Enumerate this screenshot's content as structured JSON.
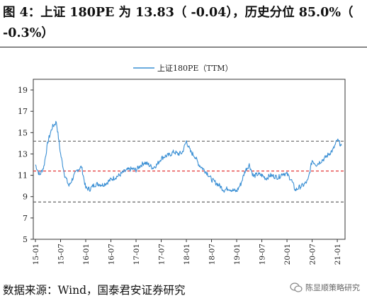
{
  "header": {
    "title": "图 4：上证 180PE 为 13.83（ -0.04），历史分位 85.0%（ -0.3%）"
  },
  "footer": {
    "source": "数据来源：Wind，国泰君安证券研究"
  },
  "watermark": {
    "text": "陈显顺策略研究",
    "icon": "wechat-icon"
  },
  "colors": {
    "series": "#3a8fd4",
    "upper_ref": "#555555",
    "median_ref": "#e02020",
    "lower_ref": "#555555"
  },
  "chart_data": {
    "type": "line",
    "title": "",
    "legend": {
      "position": "top-center",
      "entries": [
        "上证180PE（TTM）"
      ]
    },
    "ylim": [
      5,
      20
    ],
    "yticks": [
      5,
      7,
      9,
      11,
      13,
      15,
      17,
      19
    ],
    "xticks": [
      "15-01",
      "15-07",
      "16-01",
      "16-07",
      "17-01",
      "17-07",
      "18-01",
      "18-07",
      "19-01",
      "19-07",
      "20-01",
      "20-07",
      "21-01"
    ],
    "grid": false,
    "reference_lines": [
      {
        "value": 14.2,
        "style": "dashed",
        "color": "#555555"
      },
      {
        "value": 11.4,
        "style": "dashed",
        "color": "#e02020"
      },
      {
        "value": 8.5,
        "style": "dashed",
        "color": "#555555"
      }
    ],
    "series": [
      {
        "name": "上证180PE（TTM）",
        "x": [
          "2015-01",
          "2015-02",
          "2015-03",
          "2015-04",
          "2015-05",
          "2015-06",
          "2015-07",
          "2015-08",
          "2015-09",
          "2015-10",
          "2015-11",
          "2015-12",
          "2016-01",
          "2016-02",
          "2016-03",
          "2016-04",
          "2016-05",
          "2016-06",
          "2016-07",
          "2016-08",
          "2016-09",
          "2016-10",
          "2016-11",
          "2016-12",
          "2017-01",
          "2017-02",
          "2017-03",
          "2017-04",
          "2017-05",
          "2017-06",
          "2017-07",
          "2017-08",
          "2017-09",
          "2017-10",
          "2017-11",
          "2017-12",
          "2018-01",
          "2018-02",
          "2018-03",
          "2018-04",
          "2018-05",
          "2018-06",
          "2018-07",
          "2018-08",
          "2018-09",
          "2018-10",
          "2018-11",
          "2018-12",
          "2019-01",
          "2019-02",
          "2019-03",
          "2019-04",
          "2019-05",
          "2019-06",
          "2019-07",
          "2019-08",
          "2019-09",
          "2019-10",
          "2019-11",
          "2019-12",
          "2020-01",
          "2020-02",
          "2020-03",
          "2020-04",
          "2020-05",
          "2020-06",
          "2020-07",
          "2020-08",
          "2020-09",
          "2020-10",
          "2020-11",
          "2020-12",
          "2021-01",
          "2021-02"
        ],
        "values": [
          12.0,
          11.0,
          11.8,
          14.2,
          15.5,
          16.0,
          13.0,
          11.0,
          10.0,
          10.8,
          11.5,
          11.8,
          9.8,
          9.7,
          10.1,
          10.2,
          10.1,
          10.3,
          10.6,
          10.8,
          11.0,
          11.3,
          11.5,
          11.6,
          11.5,
          11.9,
          12.2,
          12.0,
          11.7,
          12.0,
          12.6,
          12.8,
          12.9,
          13.2,
          13.0,
          13.1,
          14.2,
          13.2,
          12.8,
          12.0,
          11.6,
          11.2,
          10.6,
          10.3,
          10.0,
          9.6,
          9.8,
          9.6,
          9.5,
          10.2,
          11.4,
          12.0,
          10.9,
          11.1,
          11.0,
          10.7,
          11.0,
          10.9,
          10.8,
          11.2,
          11.1,
          10.6,
          9.6,
          9.9,
          10.1,
          10.5,
          12.4,
          12.0,
          12.3,
          12.6,
          13.0,
          13.4,
          14.3,
          13.8
        ]
      }
    ]
  }
}
